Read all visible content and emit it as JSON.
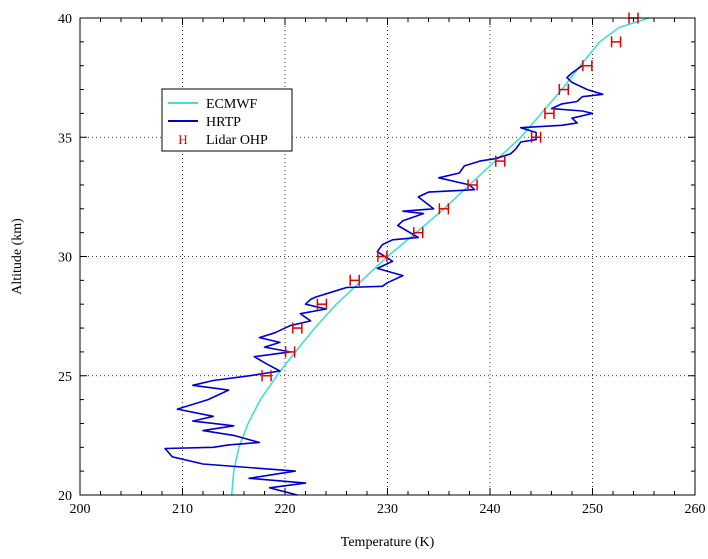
{
  "chart_data": {
    "type": "line",
    "title": "",
    "xlabel": "Temperature (K)",
    "ylabel": "Altitude (km)",
    "xlim": [
      200,
      260
    ],
    "ylim": [
      20,
      40
    ],
    "x_ticks": [
      200,
      210,
      220,
      230,
      240,
      250,
      260
    ],
    "y_ticks": [
      20,
      25,
      30,
      35,
      40
    ],
    "grid": true,
    "legend_position": "upper-left",
    "series": [
      {
        "name": "ECMWF",
        "style": "line",
        "color": "#40e0d0",
        "points": [
          [
            214.8,
            20.0
          ],
          [
            215.0,
            21.0
          ],
          [
            215.5,
            22.0
          ],
          [
            216.4,
            23.0
          ],
          [
            217.6,
            24.0
          ],
          [
            219.2,
            25.0
          ],
          [
            221.0,
            26.0
          ],
          [
            222.9,
            27.0
          ],
          [
            225.0,
            28.0
          ],
          [
            227.5,
            29.0
          ],
          [
            230.0,
            30.0
          ],
          [
            232.8,
            31.0
          ],
          [
            235.5,
            32.0
          ],
          [
            238.0,
            33.0
          ],
          [
            240.5,
            34.0
          ],
          [
            243.0,
            35.0
          ],
          [
            245.0,
            36.0
          ],
          [
            247.0,
            37.0
          ],
          [
            248.8,
            38.0
          ],
          [
            250.7,
            39.0
          ],
          [
            252.6,
            39.6
          ],
          [
            255.5,
            40.0
          ]
        ]
      },
      {
        "name": "HRTP",
        "style": "line",
        "color": "#0000cd",
        "points": [
          [
            221.2,
            20.0
          ],
          [
            218.5,
            20.3
          ],
          [
            222.0,
            20.5
          ],
          [
            216.5,
            20.7
          ],
          [
            221.0,
            21.0
          ],
          [
            212.0,
            21.3
          ],
          [
            209.0,
            21.6
          ],
          [
            208.3,
            21.95
          ],
          [
            213.0,
            22.0
          ],
          [
            214.5,
            22.1
          ],
          [
            217.5,
            22.2
          ],
          [
            215.0,
            22.5
          ],
          [
            212.0,
            22.7
          ],
          [
            215.0,
            22.9
          ],
          [
            211.0,
            23.1
          ],
          [
            213.0,
            23.3
          ],
          [
            209.5,
            23.6
          ],
          [
            212.5,
            24.0
          ],
          [
            214.5,
            24.4
          ],
          [
            211.0,
            24.6
          ],
          [
            213.0,
            24.8
          ],
          [
            216.5,
            25.0
          ],
          [
            219.5,
            25.2
          ],
          [
            218.2,
            25.5
          ],
          [
            217.0,
            25.8
          ],
          [
            220.5,
            26.0
          ],
          [
            218.0,
            26.2
          ],
          [
            219.5,
            26.4
          ],
          [
            217.5,
            26.6
          ],
          [
            219.0,
            26.8
          ],
          [
            220.5,
            27.1
          ],
          [
            222.5,
            27.3
          ],
          [
            221.5,
            27.6
          ],
          [
            224.0,
            27.8
          ],
          [
            222.0,
            28.0
          ],
          [
            222.5,
            28.2
          ],
          [
            223.0,
            28.3
          ],
          [
            224.5,
            28.5
          ],
          [
            226.0,
            28.7
          ],
          [
            229.5,
            28.75
          ],
          [
            230.0,
            28.9
          ],
          [
            231.5,
            29.2
          ],
          [
            229.0,
            29.5
          ],
          [
            230.5,
            29.8
          ],
          [
            229.0,
            30.2
          ],
          [
            229.5,
            30.5
          ],
          [
            230.5,
            30.7
          ],
          [
            233.0,
            30.8
          ],
          [
            231.0,
            31.3
          ],
          [
            231.5,
            31.5
          ],
          [
            233.5,
            31.8
          ],
          [
            231.5,
            31.9
          ],
          [
            234.5,
            32.0
          ],
          [
            233.0,
            32.5
          ],
          [
            234.0,
            32.7
          ],
          [
            238.5,
            32.8
          ],
          [
            238.0,
            33.0
          ],
          [
            235.0,
            33.3
          ],
          [
            237.0,
            33.5
          ],
          [
            237.5,
            33.8
          ],
          [
            239.0,
            34.0
          ],
          [
            240.5,
            34.1
          ],
          [
            242.0,
            34.3
          ],
          [
            242.5,
            34.5
          ],
          [
            243.0,
            34.8
          ],
          [
            244.5,
            34.9
          ],
          [
            244.5,
            35.2
          ],
          [
            243.0,
            35.4
          ],
          [
            247.0,
            35.5
          ],
          [
            248.5,
            35.6
          ],
          [
            248.0,
            35.8
          ],
          [
            250.0,
            36.0
          ],
          [
            249.0,
            36.1
          ],
          [
            246.0,
            36.2
          ],
          [
            247.0,
            36.4
          ],
          [
            248.5,
            36.5
          ],
          [
            249.0,
            36.7
          ],
          [
            251.0,
            36.8
          ],
          [
            249.5,
            37.0
          ],
          [
            248.0,
            37.3
          ],
          [
            247.5,
            37.5
          ],
          [
            248.0,
            37.7
          ],
          [
            249.0,
            38.0
          ]
        ]
      },
      {
        "name": "Lidar OHP",
        "style": "marker",
        "color": "#e00000",
        "points": [
          [
            218.2,
            25.0
          ],
          [
            220.5,
            26.0
          ],
          [
            221.2,
            27.0
          ],
          [
            223.6,
            28.0
          ],
          [
            226.8,
            29.0
          ],
          [
            229.5,
            30.0
          ],
          [
            233.0,
            31.0
          ],
          [
            235.5,
            32.0
          ],
          [
            238.3,
            33.0
          ],
          [
            241.0,
            34.0
          ],
          [
            244.5,
            35.0
          ],
          [
            245.8,
            36.0
          ],
          [
            247.2,
            37.0
          ],
          [
            249.5,
            38.0
          ],
          [
            252.3,
            39.0
          ],
          [
            254.0,
            40.0
          ]
        ]
      }
    ]
  }
}
